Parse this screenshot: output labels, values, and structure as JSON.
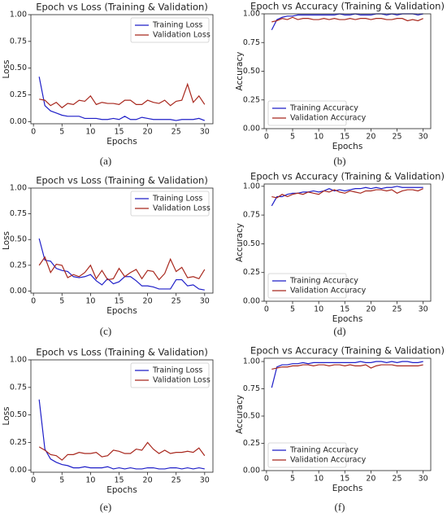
{
  "chart_data": [
    {
      "type": "line",
      "title": "Epoch vs Loss (Training & Validation)",
      "x_label": "Epochs",
      "y_label": "Loss",
      "caption": "(a)",
      "x": [
        1,
        2,
        3,
        4,
        5,
        6,
        7,
        8,
        9,
        10,
        11,
        12,
        13,
        14,
        15,
        16,
        17,
        18,
        19,
        20,
        21,
        22,
        23,
        24,
        25,
        26,
        27,
        28,
        29,
        30
      ],
      "series": [
        {
          "name": "Training Loss",
          "color": "#1f1fc8",
          "values": [
            0.42,
            0.15,
            0.1,
            0.08,
            0.06,
            0.05,
            0.05,
            0.05,
            0.03,
            0.03,
            0.03,
            0.02,
            0.02,
            0.03,
            0.02,
            0.05,
            0.02,
            0.02,
            0.04,
            0.03,
            0.02,
            0.02,
            0.02,
            0.02,
            0.01,
            0.02,
            0.02,
            0.02,
            0.03,
            0.01
          ]
        },
        {
          "name": "Validation Loss",
          "color": "#a8281e",
          "values": [
            0.21,
            0.2,
            0.15,
            0.18,
            0.13,
            0.17,
            0.16,
            0.2,
            0.19,
            0.24,
            0.16,
            0.18,
            0.17,
            0.17,
            0.16,
            0.2,
            0.2,
            0.16,
            0.16,
            0.2,
            0.18,
            0.17,
            0.2,
            0.15,
            0.19,
            0.2,
            0.35,
            0.18,
            0.24,
            0.16
          ]
        }
      ],
      "xlim": [
        -0.45,
        31.45
      ],
      "xticks": [
        0,
        5,
        10,
        15,
        20,
        25,
        30
      ],
      "ylim": [
        -0.02,
        1.0
      ],
      "yticks": [
        {
          "value": 0,
          "label": "0.00"
        },
        {
          "value": 0.25,
          "label": "0.25"
        },
        {
          "value": 0.5,
          "label": "0.50"
        },
        {
          "value": 0.75,
          "label": "0.75"
        },
        {
          "value": 1,
          "label": "1.00"
        }
      ],
      "legend": "upper right",
      "grid": false
    },
    {
      "type": "line",
      "title": "Epoch vs Accuracy (Training & Validation)",
      "x_label": "Epochs",
      "y_label": "Accuracy",
      "caption": "(b)",
      "x": [
        1,
        2,
        3,
        4,
        5,
        6,
        7,
        8,
        9,
        10,
        11,
        12,
        13,
        14,
        15,
        16,
        17,
        18,
        19,
        20,
        21,
        22,
        23,
        24,
        25,
        26,
        27,
        28,
        29,
        30
      ],
      "series": [
        {
          "name": "Training Accuracy",
          "color": "#1f1fc8",
          "values": [
            0.86,
            0.95,
            0.97,
            0.98,
            0.98,
            0.99,
            0.99,
            0.99,
            0.99,
            0.99,
            0.99,
            0.99,
            0.99,
            1.0,
            0.99,
            0.99,
            1.0,
            0.99,
            0.99,
            0.99,
            1.0,
            1.0,
            0.99,
            1.0,
            0.99,
            1.0,
            1.0,
            1.0,
            0.99,
            1.0
          ]
        },
        {
          "name": "Validation Accuracy",
          "color": "#a8281e",
          "values": [
            0.93,
            0.94,
            0.96,
            0.95,
            0.97,
            0.95,
            0.96,
            0.96,
            0.95,
            0.95,
            0.96,
            0.95,
            0.96,
            0.95,
            0.95,
            0.96,
            0.95,
            0.96,
            0.96,
            0.95,
            0.96,
            0.96,
            0.95,
            0.95,
            0.96,
            0.96,
            0.94,
            0.95,
            0.94,
            0.96
          ]
        }
      ],
      "xlim": [
        -0.45,
        31.45
      ],
      "xticks": [
        0,
        5,
        10,
        15,
        20,
        25,
        30
      ],
      "ylim": [
        0,
        1.0
      ],
      "yticks": [
        {
          "value": 0,
          "label": "0.00"
        },
        {
          "value": 0.25,
          "label": "0.25"
        },
        {
          "value": 0.5,
          "label": "0.50"
        },
        {
          "value": 0.75,
          "label": "0.75"
        },
        {
          "value": 1,
          "label": "1.00"
        }
      ],
      "legend": "lower left",
      "grid": false
    },
    {
      "type": "line",
      "title": "Epoch vs Loss (Training & Validation)",
      "x_label": "Epochs",
      "y_label": "Loss",
      "caption": "(c)",
      "x": [
        1,
        2,
        3,
        4,
        5,
        6,
        7,
        8,
        9,
        10,
        11,
        12,
        13,
        14,
        15,
        16,
        17,
        18,
        19,
        20,
        21,
        22,
        23,
        24,
        25,
        26,
        27,
        28,
        29,
        30
      ],
      "series": [
        {
          "name": "Training Loss",
          "color": "#1f1fc8",
          "values": [
            0.51,
            0.3,
            0.29,
            0.22,
            0.2,
            0.19,
            0.14,
            0.13,
            0.14,
            0.16,
            0.1,
            0.06,
            0.12,
            0.07,
            0.09,
            0.14,
            0.14,
            0.1,
            0.05,
            0.05,
            0.04,
            0.02,
            0.02,
            0.02,
            0.11,
            0.11,
            0.05,
            0.06,
            0.02,
            0.01
          ]
        },
        {
          "name": "Validation Loss",
          "color": "#a8281e",
          "values": [
            0.25,
            0.33,
            0.18,
            0.26,
            0.25,
            0.13,
            0.16,
            0.14,
            0.18,
            0.25,
            0.12,
            0.2,
            0.11,
            0.12,
            0.22,
            0.14,
            0.18,
            0.21,
            0.12,
            0.2,
            0.19,
            0.11,
            0.17,
            0.31,
            0.19,
            0.23,
            0.13,
            0.14,
            0.12,
            0.21
          ]
        }
      ],
      "xlim": [
        -0.45,
        31.45
      ],
      "xticks": [
        0,
        5,
        10,
        15,
        20,
        25,
        30
      ],
      "ylim": [
        -0.02,
        1.0
      ],
      "yticks": [
        {
          "value": 0,
          "label": "0.00"
        },
        {
          "value": 0.25,
          "label": "0.25"
        },
        {
          "value": 0.5,
          "label": "0.50"
        },
        {
          "value": 0.75,
          "label": "0.75"
        },
        {
          "value": 1,
          "label": "1.00"
        }
      ],
      "legend": "upper right",
      "grid": false
    },
    {
      "type": "line",
      "title": "Epoch vs Accuracy (Training & Validation)",
      "x_label": "Epochs",
      "y_label": "Accuracy",
      "caption": "(d)",
      "x": [
        1,
        2,
        3,
        4,
        5,
        6,
        7,
        8,
        9,
        10,
        11,
        12,
        13,
        14,
        15,
        16,
        17,
        18,
        19,
        20,
        21,
        22,
        23,
        24,
        25,
        26,
        27,
        28,
        29,
        30
      ],
      "series": [
        {
          "name": "Training Accuracy",
          "color": "#1f1fc8",
          "values": [
            0.83,
            0.91,
            0.91,
            0.93,
            0.94,
            0.94,
            0.95,
            0.95,
            0.96,
            0.95,
            0.96,
            0.98,
            0.96,
            0.97,
            0.96,
            0.97,
            0.98,
            0.98,
            0.99,
            0.98,
            0.99,
            0.98,
            0.99,
            0.99,
            1.0,
            0.99,
            0.99,
            0.99,
            0.99,
            0.99
          ]
        },
        {
          "name": "Validation Accuracy",
          "color": "#a8281e",
          "values": [
            0.91,
            0.9,
            0.93,
            0.91,
            0.93,
            0.94,
            0.93,
            0.95,
            0.94,
            0.93,
            0.96,
            0.95,
            0.97,
            0.95,
            0.94,
            0.96,
            0.95,
            0.94,
            0.96,
            0.96,
            0.97,
            0.97,
            0.96,
            0.97,
            0.94,
            0.96,
            0.97,
            0.97,
            0.96,
            0.98
          ]
        }
      ],
      "xlim": [
        -0.45,
        31.45
      ],
      "xticks": [
        0,
        5,
        10,
        15,
        20,
        25,
        30
      ],
      "ylim": [
        0,
        1.02
      ],
      "yticks": [
        {
          "value": 0,
          "label": "0.00"
        },
        {
          "value": 0.25,
          "label": "0.25"
        },
        {
          "value": 0.5,
          "label": "0.50"
        },
        {
          "value": 0.75,
          "label": "0.75"
        },
        {
          "value": 1,
          "label": "1.00"
        }
      ],
      "legend": "lower left",
      "grid": false
    },
    {
      "type": "line",
      "title": "Epoch vs Loss (Training & Validation)",
      "x_label": "Epochs",
      "y_label": "Loss",
      "caption": "(e)",
      "x": [
        1,
        2,
        3,
        4,
        5,
        6,
        7,
        8,
        9,
        10,
        11,
        12,
        13,
        14,
        15,
        16,
        17,
        18,
        19,
        20,
        21,
        22,
        23,
        24,
        25,
        26,
        27,
        28,
        29,
        30
      ],
      "series": [
        {
          "name": "Training Loss",
          "color": "#1f1fc8",
          "values": [
            0.64,
            0.19,
            0.1,
            0.07,
            0.05,
            0.04,
            0.02,
            0.02,
            0.03,
            0.02,
            0.02,
            0.02,
            0.03,
            0.01,
            0.02,
            0.01,
            0.02,
            0.01,
            0.01,
            0.02,
            0.02,
            0.01,
            0.01,
            0.02,
            0.02,
            0.01,
            0.02,
            0.01,
            0.02,
            0.01
          ]
        },
        {
          "name": "Validation Loss",
          "color": "#a8281e",
          "values": [
            0.21,
            0.18,
            0.14,
            0.13,
            0.09,
            0.14,
            0.14,
            0.16,
            0.15,
            0.15,
            0.16,
            0.12,
            0.13,
            0.18,
            0.17,
            0.15,
            0.15,
            0.19,
            0.18,
            0.25,
            0.19,
            0.15,
            0.18,
            0.15,
            0.16,
            0.16,
            0.17,
            0.16,
            0.2,
            0.13
          ]
        }
      ],
      "xlim": [
        -0.45,
        31.45
      ],
      "xticks": [
        0,
        5,
        10,
        15,
        20,
        25,
        30
      ],
      "ylim": [
        -0.02,
        1.0
      ],
      "yticks": [
        {
          "value": 0,
          "label": "0.00"
        },
        {
          "value": 0.25,
          "label": "0.25"
        },
        {
          "value": 0.5,
          "label": "0.50"
        },
        {
          "value": 0.75,
          "label": "0.75"
        },
        {
          "value": 1,
          "label": "1.00"
        }
      ],
      "legend": "upper right",
      "grid": false
    },
    {
      "type": "line",
      "title": "Epoch vs Accuracy (Training & Validation)",
      "x_label": "Epochs",
      "y_label": "Accuracy",
      "caption": "(f)",
      "x": [
        1,
        2,
        3,
        4,
        5,
        6,
        7,
        8,
        9,
        10,
        11,
        12,
        13,
        14,
        15,
        16,
        17,
        18,
        19,
        20,
        21,
        22,
        23,
        24,
        25,
        26,
        27,
        28,
        29,
        30
      ],
      "series": [
        {
          "name": "Training Accuracy",
          "color": "#1f1fc8",
          "values": [
            0.76,
            0.95,
            0.97,
            0.97,
            0.98,
            0.98,
            0.99,
            0.98,
            0.99,
            0.99,
            0.99,
            0.99,
            0.99,
            0.99,
            0.99,
            0.99,
            0.99,
            1.0,
            0.99,
            0.99,
            1.0,
            1.0,
            0.99,
            1.0,
            0.99,
            1.0,
            1.0,
            0.99,
            0.99,
            1.0
          ]
        },
        {
          "name": "Validation Accuracy",
          "color": "#a8281e",
          "values": [
            0.93,
            0.94,
            0.95,
            0.95,
            0.96,
            0.96,
            0.97,
            0.97,
            0.96,
            0.97,
            0.97,
            0.96,
            0.97,
            0.97,
            0.96,
            0.97,
            0.96,
            0.96,
            0.97,
            0.94,
            0.96,
            0.97,
            0.97,
            0.97,
            0.96,
            0.96,
            0.96,
            0.96,
            0.96,
            0.97
          ]
        }
      ],
      "xlim": [
        -0.45,
        31.45
      ],
      "xticks": [
        0,
        5,
        10,
        15,
        20,
        25,
        30
      ],
      "ylim": [
        0,
        1.03
      ],
      "yticks": [
        {
          "value": 0,
          "label": "0.00"
        },
        {
          "value": 0.25,
          "label": "0.25"
        },
        {
          "value": 0.5,
          "label": "0.50"
        },
        {
          "value": 0.75,
          "label": "0.75"
        },
        {
          "value": 1,
          "label": "1.00"
        }
      ],
      "legend": "lower left",
      "grid": false
    }
  ]
}
